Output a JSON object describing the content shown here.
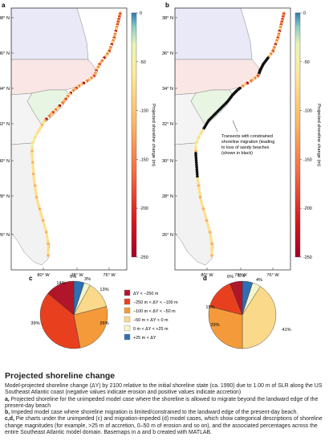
{
  "panels": {
    "a": {
      "letter": "a",
      "cbar_label": "Projected shoreline change (m)"
    },
    "b": {
      "letter": "b",
      "cbar_label": "Projected shoreline change (m)",
      "annotation": [
        "Transects with constrained",
        "shoreline migration (leading",
        "to loss of sandy beaches",
        "(shown in black)"
      ]
    },
    "c": {
      "letter": "c"
    },
    "d": {
      "letter": "d"
    }
  },
  "colorbar_ticks": [
    "0",
    "-50",
    "-100",
    "-150",
    "-200",
    "-250"
  ],
  "lat_labels": [
    "38° N",
    "36° N",
    "34° N",
    "32° N",
    "30° N",
    "28° N",
    "26° N"
  ],
  "lon_labels": [
    "80° W",
    "78° W",
    "76° W"
  ],
  "legend": [
    {
      "label": "ΔY < −250 m",
      "color": "#b0152a"
    },
    {
      "label": "−250 m < ΔY < −100 m",
      "color": "#e8401f"
    },
    {
      "label": "−100 m < ΔY < −50 m",
      "color": "#f49a3a"
    },
    {
      "label": "−50 m < ΔY < 0 m",
      "color": "#fbd98a"
    },
    {
      "label": "0 m < ΔY < +25 m",
      "color": "#f6f6cc"
    },
    {
      "label": "+25 m < ΔY",
      "color": "#2f6fb4"
    }
  ],
  "chart_data": [
    {
      "type": "pie",
      "panel": "c",
      "categories": [
        "ΔY < −250 m",
        "−250 m < ΔY < −100 m",
        "−100 m < ΔY < −50 m",
        "−50 m < ΔY < 0 m",
        "0 m < ΔY < +25 m",
        "+25 m < ΔY"
      ],
      "values": [
        14,
        39,
        26,
        13,
        3,
        5
      ],
      "labels": [
        "14%",
        "39%",
        "26%",
        "13%",
        "3%",
        "5%"
      ]
    },
    {
      "type": "pie",
      "panel": "d",
      "categories": [
        "ΔY < −250 m",
        "−250 m < ΔY < −100 m",
        "−100 m < ΔY < −50 m",
        "−50 m < ΔY < 0 m",
        "0 m < ΔY < +25 m",
        "+25 m < ΔY"
      ],
      "values": [
        6,
        15,
        29,
        41,
        4,
        5
      ],
      "labels": [
        "6%",
        "15%",
        "29%",
        "41%",
        "4%",
        "5%"
      ]
    }
  ],
  "caption": {
    "title": "Projected shoreline change",
    "intro": "Model-projected shoreline change (ΔY) by 2100 relative to the initial shoreline state (ca. 1990) due to 1.00 m of SLR along the US Southeast Atlantic coast (negative values indicate erosion and positive values indicate accretion)",
    "a_label": "a,",
    "a_text": " Projected shoreline for the unimpeded model case where the shoreline is allowed to migrate beyond the landward edge of the present-day beach",
    "b_label": "b,",
    "b_text": " Impeded model case where shoreline migration is limited/constrained to the landward edge of the present-day beach.",
    "cd_label": "c,d,",
    "cd_text": " Pie charts under the unimpeded (c) and migration-impeded (d) model cases, which show categorical descriptions of shoreline change magnitudes (for example, >25 m of accretion, 0–50 m of erosion and so on), and the associated percentages across the entire Southeast Atlantic model domain. Basemaps in a and b created with MATLAB."
  }
}
